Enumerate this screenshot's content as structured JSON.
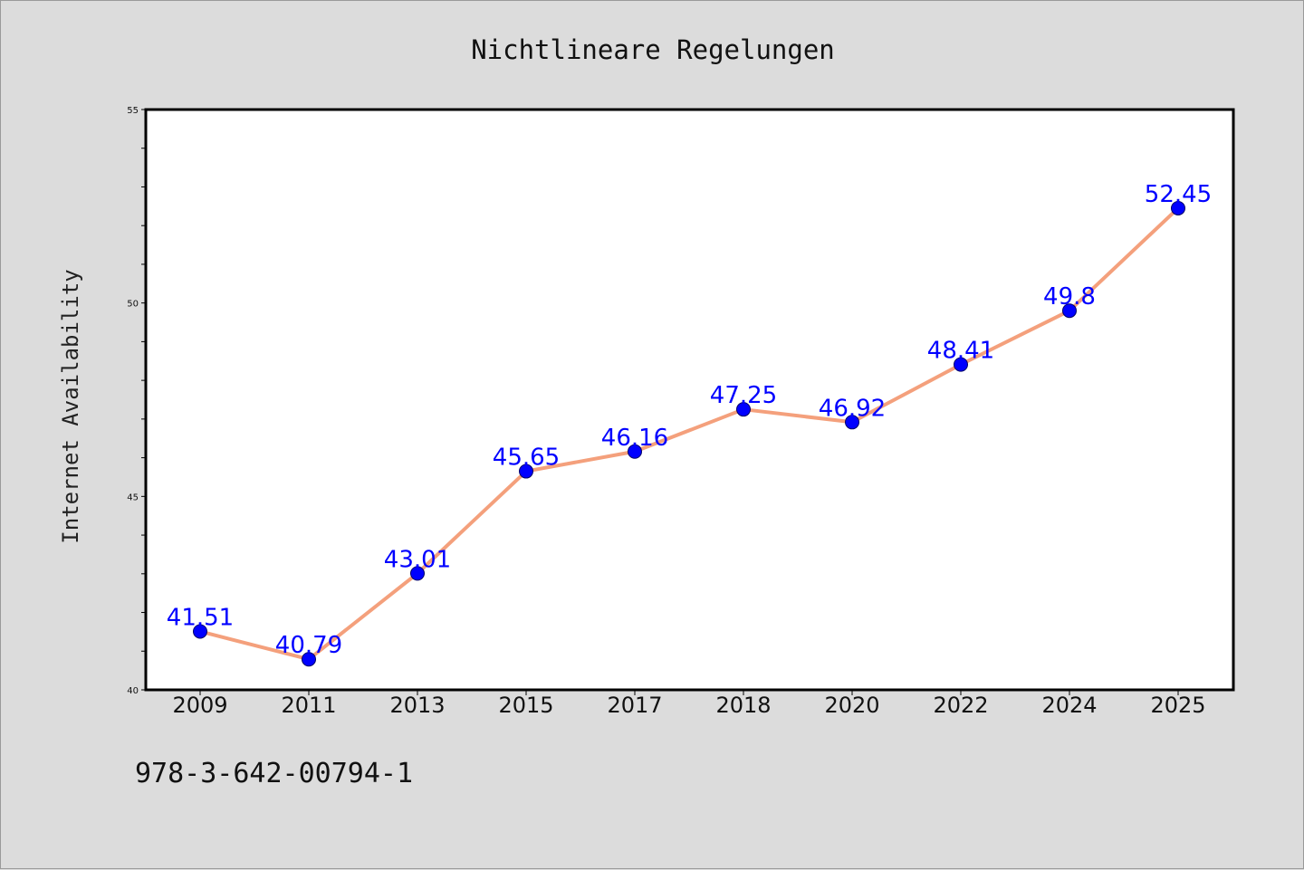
{
  "chart_data": {
    "type": "line",
    "title": "Nichtlineare Regelungen",
    "xlabel": "",
    "ylabel": "Internet Availability",
    "categories": [
      "2009",
      "2011",
      "2013",
      "2015",
      "2017",
      "2018",
      "2020",
      "2022",
      "2024",
      "2025"
    ],
    "values": [
      41.51,
      40.79,
      43.01,
      45.65,
      46.16,
      47.25,
      46.92,
      48.41,
      49.8,
      52.45
    ],
    "data_labels": [
      "41.51",
      "40.79",
      "43.01",
      "45.65",
      "46.16",
      "47.25",
      "46.92",
      "48.41",
      "49.8",
      "52.45"
    ],
    "ylim": [
      40,
      55
    ],
    "yticks": [
      40,
      45,
      50,
      55
    ],
    "ytick_labels": [
      "40",
      "45",
      "50",
      "55"
    ],
    "grid": false,
    "legend": "none",
    "colors": {
      "line": "#f4a07c",
      "marker": "#0000ff",
      "data_label": "#0000ff",
      "background": "#dcdcdc",
      "plot_area": "#ffffff"
    }
  },
  "footer": {
    "isbn": "978-3-642-00794-1"
  }
}
